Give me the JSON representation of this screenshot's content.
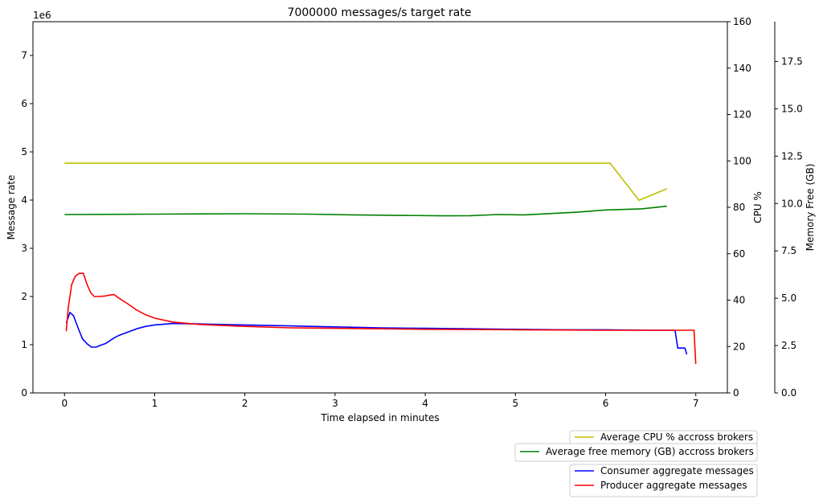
{
  "chart_data": {
    "type": "line",
    "title": "7000000 messages/s target rate",
    "xlabel": "Time elapsed in minutes",
    "xlim": [
      -0.35,
      7.35
    ],
    "x_ticks": [
      0,
      1,
      2,
      3,
      4,
      5,
      6,
      7
    ],
    "grid": false,
    "axes": {
      "message_rate": {
        "label": "Message rate",
        "offset_text": "1e6",
        "ylim": [
          0,
          7.7
        ],
        "ticks": [
          0,
          1,
          2,
          3,
          4,
          5,
          6,
          7
        ]
      },
      "cpu": {
        "label": "CPU %",
        "ylim": [
          0,
          160
        ],
        "ticks": [
          0,
          20,
          40,
          60,
          80,
          100,
          120,
          140,
          160
        ]
      },
      "memory": {
        "label": "Memory Free (GB)",
        "ylim": [
          0,
          19.6
        ],
        "ticks": [
          "0.0",
          "2.5",
          "5.0",
          "7.5",
          "10.0",
          "12.5",
          "15.0",
          "17.5"
        ]
      }
    },
    "series": [
      {
        "name": "Average CPU % accross brokers",
        "axis": "cpu",
        "color": "#bfbf00",
        "x": [
          0,
          1,
          2,
          3,
          4,
          5,
          6.05,
          6.37,
          6.68
        ],
        "y": [
          99,
          99,
          99,
          99,
          99,
          99,
          99,
          83,
          88
        ]
      },
      {
        "name": "Average free memory (GB) accross brokers",
        "axis": "memory",
        "color": "#008000",
        "x": [
          0,
          1,
          2,
          2.7,
          3.2,
          4.2,
          4.5,
          4.8,
          5.1,
          5.7,
          6.0,
          6.4,
          6.68
        ],
        "y": [
          9.42,
          9.44,
          9.46,
          9.44,
          9.4,
          9.35,
          9.36,
          9.42,
          9.4,
          9.55,
          9.66,
          9.72,
          9.86
        ]
      },
      {
        "name": "Consumer aggregate messages",
        "axis": "message_rate",
        "color": "#0000ff",
        "x": [
          0.02,
          0.06,
          0.1,
          0.15,
          0.2,
          0.25,
          0.3,
          0.35,
          0.4,
          0.45,
          0.5,
          0.55,
          0.6,
          0.7,
          0.8,
          0.9,
          1.0,
          1.2,
          1.5,
          2.0,
          2.5,
          3.0,
          3.5,
          4.0,
          4.5,
          5.0,
          5.5,
          6.0,
          6.5,
          6.77,
          6.8,
          6.88,
          6.9
        ],
        "y": [
          1.45,
          1.67,
          1.6,
          1.35,
          1.12,
          1.02,
          0.95,
          0.95,
          0.99,
          1.02,
          1.08,
          1.14,
          1.19,
          1.26,
          1.33,
          1.38,
          1.41,
          1.44,
          1.43,
          1.41,
          1.39,
          1.37,
          1.35,
          1.34,
          1.33,
          1.32,
          1.31,
          1.31,
          1.3,
          1.3,
          0.93,
          0.93,
          0.8
        ]
      },
      {
        "name": "Producer aggregate messages",
        "axis": "message_rate",
        "color": "#ff0000",
        "x": [
          0.02,
          0.04,
          0.08,
          0.12,
          0.16,
          0.21,
          0.25,
          0.29,
          0.33,
          0.38,
          0.45,
          0.5,
          0.55,
          0.6,
          0.7,
          0.8,
          0.9,
          1.0,
          1.2,
          1.5,
          2.0,
          2.5,
          3.0,
          4.0,
          5.0,
          6.0,
          6.98,
          7.0
        ],
        "y": [
          1.28,
          1.75,
          2.25,
          2.42,
          2.48,
          2.48,
          2.25,
          2.08,
          2.0,
          2.0,
          2.01,
          2.03,
          2.04,
          1.97,
          1.85,
          1.72,
          1.62,
          1.55,
          1.47,
          1.42,
          1.38,
          1.35,
          1.34,
          1.32,
          1.31,
          1.3,
          1.3,
          0.6
        ]
      }
    ],
    "legends": [
      {
        "placement": "below-right",
        "entries": [
          0,
          1
        ]
      },
      {
        "placement": "below-right",
        "entries": [
          2,
          3
        ]
      }
    ]
  }
}
